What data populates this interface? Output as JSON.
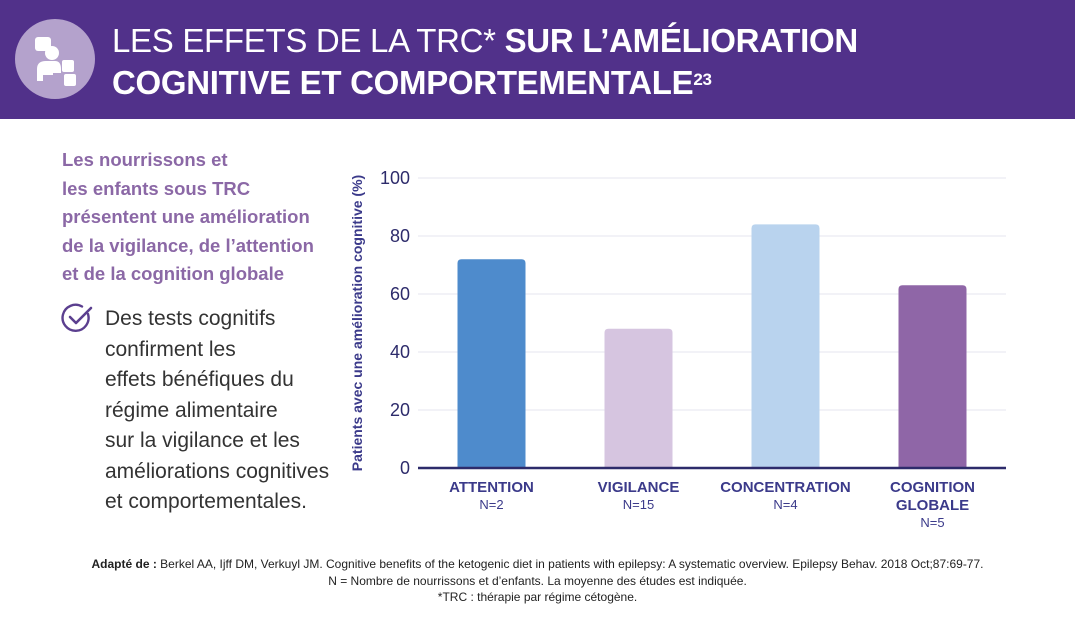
{
  "header": {
    "title_light": "LES EFFETS DE LA TRC*",
    "title_bold_1": "SUR L’AMÉLIORATION",
    "title_bold_2": "COGNITIVE ET COMPORTEMENTALE",
    "title_sup": "23",
    "icon": "child-playing-blocks-icon",
    "colors": {
      "banner": "#51318a",
      "badge": "#b4a2cc"
    }
  },
  "lead": {
    "lines": [
      "Les nourrissons et",
      "les enfants sous TRC",
      "présentent une amélioration",
      "de la vigilance, de l’attention",
      "et de la cognition globale"
    ]
  },
  "bullet": {
    "icon": "checkmark-circle-icon",
    "lines": [
      "Des tests cognitifs",
      "confirment les",
      "effets bénéfiques du",
      "régime alimentaire",
      "sur la vigilance et les",
      "améliorations cognitives",
      "et comportementales."
    ]
  },
  "chart_data": {
    "type": "bar",
    "categories": [
      {
        "label_lines": [
          "ATTENTION"
        ],
        "n": "N=2"
      },
      {
        "label_lines": [
          "VIGILANCE"
        ],
        "n": "N=15"
      },
      {
        "label_lines": [
          "CONCENTRATION"
        ],
        "n": "N=4"
      },
      {
        "label_lines": [
          "COGNITION",
          "GLOBALE"
        ],
        "n": "N=5"
      }
    ],
    "values": [
      72,
      48,
      84,
      63
    ],
    "colors": [
      "#4e8bcc",
      "#d6c5e0",
      "#b9d3ee",
      "#8f66a7"
    ],
    "ylabel": "Patients avec une amélioration cognitive (%)",
    "ylim": [
      0,
      100
    ],
    "yticks": [
      0,
      20,
      40,
      60,
      80,
      100
    ],
    "grid": true
  },
  "footer": {
    "source_bold": "Adapté de :",
    "source_text": " Berkel AA, Ijff DM, Verkuyl JM. Cognitive benefits of the ketogenic diet in patients with epilepsy: A systematic overview. Epilepsy Behav. 2018 Oct;87:69-77.",
    "note_n": "N = Nombre de nourrissons et d’enfants. La moyenne des études est indiquée.",
    "note_trc": "*TRC : thérapie par régime cétogène."
  }
}
